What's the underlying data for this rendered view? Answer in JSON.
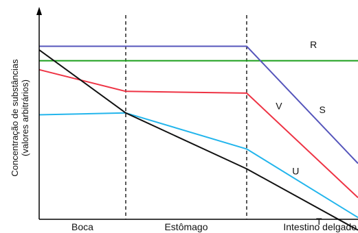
{
  "chart_data": {
    "type": "line",
    "ylabel_line1": "Concentração de substâncias",
    "ylabel_line2": "(valores arbitrários)",
    "regions": [
      "Boca",
      "Estômago",
      "Intestino delgado"
    ],
    "x": [
      0,
      1,
      2,
      3
    ],
    "ylim": [
      0,
      100
    ],
    "series": [
      {
        "name": "R",
        "color": "#1a9e1a",
        "values": [
          88,
          88,
          88,
          88
        ]
      },
      {
        "name": "S",
        "color": "#5555bb",
        "values": [
          96,
          96,
          96,
          31
        ]
      },
      {
        "name": "V",
        "color": "#ee3344",
        "values": [
          83,
          71,
          70,
          12
        ]
      },
      {
        "name": "U",
        "color": "#22b5ec",
        "values": [
          58,
          59,
          39,
          1
        ]
      },
      {
        "name": "T",
        "color": "#111111",
        "values": [
          94,
          59,
          28,
          -6
        ]
      }
    ],
    "annotations": [
      {
        "text": "R",
        "at": [
          2.6,
          95
        ]
      },
      {
        "text": "S",
        "at": [
          2.68,
          59
        ]
      },
      {
        "text": "V",
        "at": [
          2.29,
          61
        ]
      },
      {
        "text": "U",
        "at": [
          2.44,
          25
        ]
      },
      {
        "text": "T",
        "at": [
          2.65,
          -3
        ]
      }
    ],
    "dividers_x": [
      1,
      2
    ],
    "grid": false
  }
}
